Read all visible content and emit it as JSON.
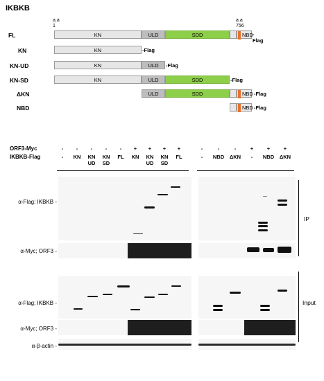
{
  "figure_title": "IKBKB",
  "aa_start": {
    "prefix": "a.a",
    "value": "1"
  },
  "aa_end": {
    "prefix": "a.a",
    "value": "756"
  },
  "constructs": [
    {
      "label": "FL",
      "tag": "-Flag"
    },
    {
      "label": "KN",
      "tag": "-Flag"
    },
    {
      "label": "KN-UD",
      "tag": "-Flag"
    },
    {
      "label": "KN-SD",
      "tag": "-Flag"
    },
    {
      "label": "ΔKN",
      "tag": "-Flag"
    },
    {
      "label": "NBD",
      "tag": "-Flag"
    }
  ],
  "domains": {
    "kn": "KN",
    "uld": "ULD",
    "sdd": "SDD",
    "nbd": "NBD"
  },
  "colors": {
    "kn": "#e6e6e6",
    "uld": "#bdbdbd",
    "sdd": "#8ecf4a",
    "nbd_marker": "#e8702a"
  },
  "header": {
    "orf3_label": "ORF3-Myc",
    "ikbkb_label": "IKBKB-Flag",
    "left_orf3": [
      "-",
      "-",
      "-",
      "-",
      "-",
      "+",
      "+",
      "+",
      "+"
    ],
    "left_ikbkb": [
      "-",
      "KN",
      "KN\nUD",
      "KN\nSD",
      "FL",
      "KN",
      "KN\nUD",
      "KN\nSD",
      "FL"
    ],
    "right_orf3": [
      "-",
      "-",
      "-",
      "+",
      "+",
      "+"
    ],
    "right_ikbkb": [
      "-",
      "NBD",
      "ΔKN",
      "-",
      "NBD",
      "ΔKN"
    ]
  },
  "blot_labels": {
    "ip_flag": "α-Flag; IKBKB -",
    "ip_myc": "α-Myc; ORF3 -",
    "in_flag": "α-Flag; IKBKB -",
    "in_myc": "α-Myc; ORF3 -",
    "actin": "α-β-actin -"
  },
  "section_labels": {
    "ip": "IP",
    "input": "Input"
  }
}
